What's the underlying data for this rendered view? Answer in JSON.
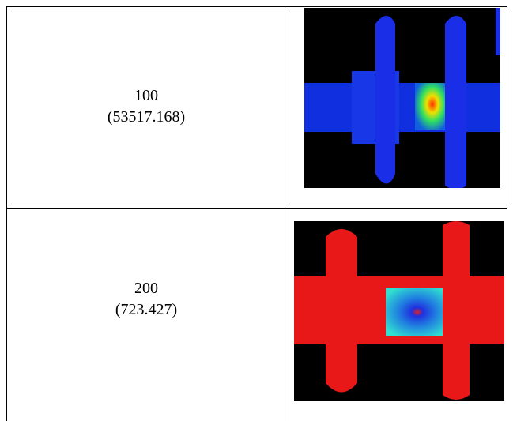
{
  "table": {
    "rows": [
      {
        "label": "100",
        "value": "(53517.168)"
      },
      {
        "label": "200",
        "value": "(723.427)"
      }
    ]
  }
}
